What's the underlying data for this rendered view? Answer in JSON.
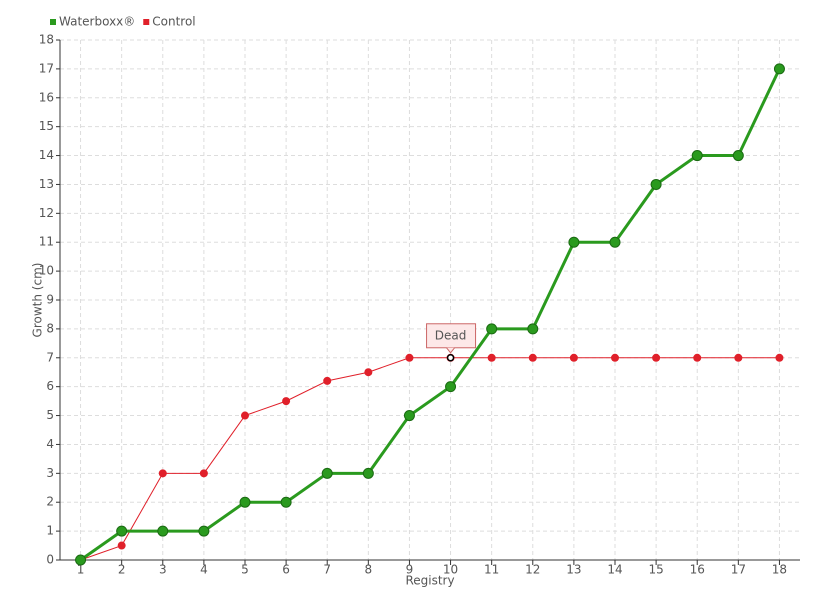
{
  "chart_data": {
    "type": "line",
    "categories": [
      "1",
      "2",
      "3",
      "4",
      "5",
      "6",
      "7",
      "8",
      "9",
      "10",
      "11",
      "12",
      "13",
      "14",
      "15",
      "16",
      "17",
      "18"
    ],
    "series": [
      {
        "name": "Waterboxx®",
        "color": "#2a9a1e",
        "values": [
          0,
          1,
          1,
          1,
          2,
          2,
          3,
          3,
          5,
          6,
          8,
          8,
          11,
          11,
          13,
          14,
          14,
          17
        ]
      },
      {
        "name": "Control",
        "color": "#e0202a",
        "values": [
          0,
          0.5,
          3,
          3,
          5,
          5.5,
          6.2,
          6.5,
          7,
          7,
          7,
          7,
          7,
          7,
          7,
          7,
          7,
          7
        ]
      }
    ],
    "xlabel": "Registry",
    "ylabel": "Growth (cm)",
    "ylim": [
      0,
      18
    ],
    "yticks": [
      0,
      1,
      2,
      3,
      4,
      5,
      6,
      7,
      8,
      9,
      10,
      11,
      12,
      13,
      14,
      15,
      16,
      17,
      18
    ],
    "grid": true,
    "legend": "top-left",
    "annotations": [
      {
        "text": "Dead",
        "x": "10",
        "y": 7
      }
    ]
  }
}
